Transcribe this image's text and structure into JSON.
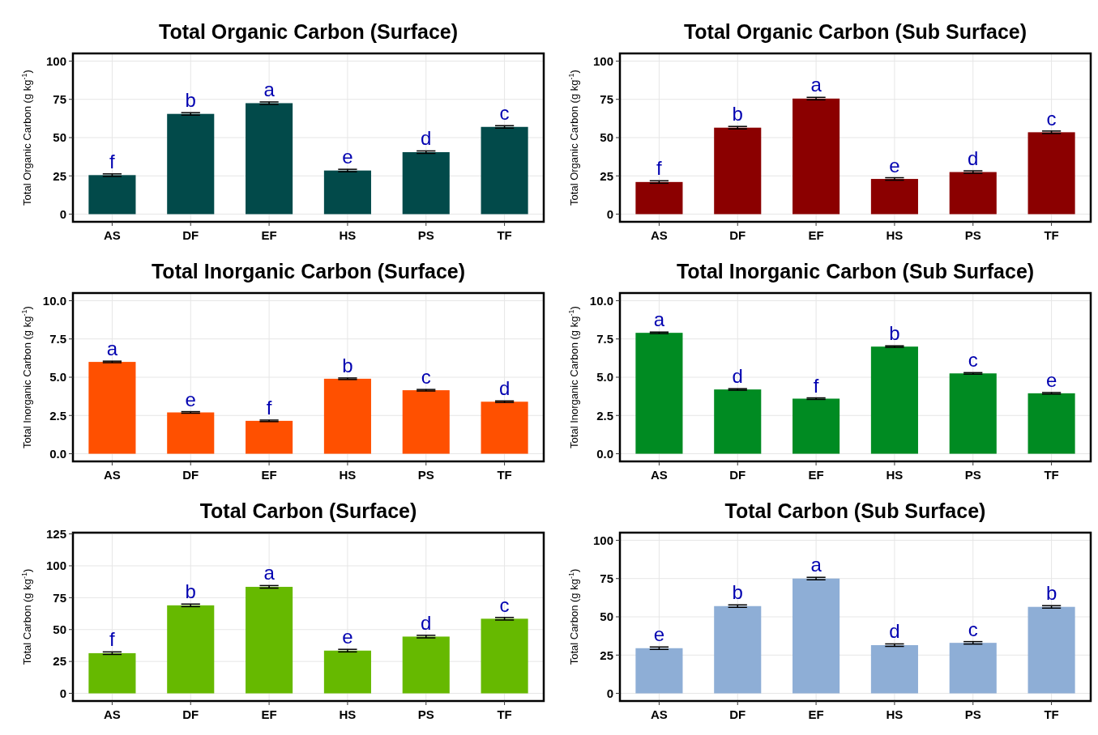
{
  "chart_data": [
    {
      "type": "bar",
      "title": "Total Organic Carbon (Surface)",
      "ylabel": "Total Organic Carbon (g kg$^{-1}$)",
      "categories": [
        "AS",
        "DF",
        "EF",
        "HS",
        "PS",
        "TF"
      ],
      "values": [
        25.5,
        65.5,
        72.5,
        28.5,
        40.5,
        57
      ],
      "errors": [
        0.8,
        0.8,
        0.8,
        0.8,
        0.8,
        0.8
      ],
      "color": "#024a4a",
      "ylim": [
        -5,
        105
      ],
      "yticks": [
        0,
        25,
        50,
        75,
        100
      ],
      "grid": true,
      "annotations": [
        {
          "text": "f",
          "x": "AS",
          "y": 26.3
        },
        {
          "text": "b",
          "x": "DF",
          "y": 66.3
        },
        {
          "text": "a",
          "x": "EF",
          "y": 73.3
        },
        {
          "text": "e",
          "x": "HS",
          "y": 29.3
        },
        {
          "text": "d",
          "x": "PS",
          "y": 41.3
        },
        {
          "text": "c",
          "x": "TF",
          "y": 57.8
        }
      ]
    },
    {
      "type": "bar",
      "title": "Total Organic Carbon (Sub Surface)",
      "ylabel": "Total Organic Carbon (g kg$^{-1}$)",
      "categories": [
        "AS",
        "DF",
        "EF",
        "HS",
        "PS",
        "TF"
      ],
      "values": [
        21,
        56.5,
        75.5,
        23,
        27.5,
        53.5
      ],
      "errors": [
        0.8,
        0.8,
        0.8,
        0.8,
        0.8,
        0.8
      ],
      "color": "#8b0000",
      "ylim": [
        -5,
        105
      ],
      "yticks": [
        0,
        25,
        50,
        75,
        100
      ],
      "grid": true,
      "annotations": [
        {
          "text": "f",
          "x": "AS",
          "y": 21.8
        },
        {
          "text": "b",
          "x": "DF",
          "y": 57.3
        },
        {
          "text": "a",
          "x": "EF",
          "y": 76.3
        },
        {
          "text": "e",
          "x": "HS",
          "y": 23.8
        },
        {
          "text": "d",
          "x": "PS",
          "y": 28.3
        },
        {
          "text": "c",
          "x": "TF",
          "y": 54.3
        }
      ]
    },
    {
      "type": "bar",
      "title": "Total Inorganic Carbon (Surface)",
      "ylabel": "Total Inorganic Carbon (g kg$^{-1}$)",
      "categories": [
        "AS",
        "DF",
        "EF",
        "HS",
        "PS",
        "TF"
      ],
      "values": [
        6.0,
        2.7,
        2.15,
        4.9,
        4.15,
        3.4
      ],
      "errors": [
        0.05,
        0.05,
        0.05,
        0.05,
        0.05,
        0.05
      ],
      "color": "#ff5000",
      "ylim": [
        -0.5,
        10.5
      ],
      "yticks": [
        {
          "value": 0,
          "label": "0.0"
        },
        {
          "value": 2.5,
          "label": "2.5"
        },
        {
          "value": 5,
          "label": "5.0"
        },
        {
          "value": 7.5,
          "label": "7.5"
        },
        {
          "value": 10,
          "label": "10.0"
        }
      ],
      "grid": true,
      "annotations": [
        {
          "text": "a",
          "x": "AS",
          "y": 6.05
        },
        {
          "text": "e",
          "x": "DF",
          "y": 2.75
        },
        {
          "text": "f",
          "x": "EF",
          "y": 2.2
        },
        {
          "text": "b",
          "x": "HS",
          "y": 4.95
        },
        {
          "text": "c",
          "x": "PS",
          "y": 4.2
        },
        {
          "text": "d",
          "x": "TF",
          "y": 3.45
        }
      ]
    },
    {
      "type": "bar",
      "title": "Total Inorganic Carbon (Sub Surface)",
      "ylabel": "Total Inorganic Carbon (g kg$^{-1}$)",
      "categories": [
        "AS",
        "DF",
        "EF",
        "HS",
        "PS",
        "TF"
      ],
      "values": [
        7.9,
        4.2,
        3.6,
        7.0,
        5.25,
        3.95
      ],
      "errors": [
        0.05,
        0.05,
        0.05,
        0.05,
        0.05,
        0.05
      ],
      "color": "#008b22",
      "ylim": [
        -0.5,
        10.5
      ],
      "yticks": [
        {
          "value": 0,
          "label": "0.0"
        },
        {
          "value": 2.5,
          "label": "2.5"
        },
        {
          "value": 5,
          "label": "5.0"
        },
        {
          "value": 7.5,
          "label": "7.5"
        },
        {
          "value": 10,
          "label": "10.0"
        }
      ],
      "grid": true,
      "annotations": [
        {
          "text": "a",
          "x": "AS",
          "y": 7.95
        },
        {
          "text": "d",
          "x": "DF",
          "y": 4.25
        },
        {
          "text": "f",
          "x": "EF",
          "y": 3.65
        },
        {
          "text": "b",
          "x": "HS",
          "y": 7.05
        },
        {
          "text": "c",
          "x": "PS",
          "y": 5.3
        },
        {
          "text": "e",
          "x": "TF",
          "y": 4.0
        }
      ]
    },
    {
      "type": "bar",
      "title": "Total Carbon (Surface)",
      "ylabel": "Total Carbon (g kg$^{-1}$)",
      "categories": [
        "AS",
        "DF",
        "EF",
        "HS",
        "PS",
        "TF"
      ],
      "values": [
        31.5,
        69,
        83.5,
        33.5,
        44.5,
        58.5
      ],
      "errors": [
        1,
        1,
        1,
        1,
        1,
        1
      ],
      "color": "#66b900",
      "ylim": [
        -6,
        126
      ],
      "yticks": [
        0,
        25,
        50,
        75,
        100,
        125
      ],
      "grid": true,
      "annotations": [
        {
          "text": "f",
          "x": "AS",
          "y": 32.5
        },
        {
          "text": "b",
          "x": "DF",
          "y": 70
        },
        {
          "text": "a",
          "x": "EF",
          "y": 84.5
        },
        {
          "text": "e",
          "x": "HS",
          "y": 34.5
        },
        {
          "text": "d",
          "x": "PS",
          "y": 45.5
        },
        {
          "text": "c",
          "x": "TF",
          "y": 59.5
        }
      ]
    },
    {
      "type": "bar",
      "title": "Total Carbon (Sub Surface)",
      "ylabel": "Total Carbon (g kg$^{-1}$)",
      "categories": [
        "AS",
        "DF",
        "EF",
        "HS",
        "PS",
        "TF"
      ],
      "values": [
        29.5,
        57,
        75,
        31.5,
        33,
        56.5
      ],
      "errors": [
        0.8,
        0.8,
        0.8,
        0.8,
        0.8,
        0.8
      ],
      "color": "#8eaed6",
      "ylim": [
        -5,
        105
      ],
      "yticks": [
        0,
        25,
        50,
        75,
        100
      ],
      "grid": true,
      "annotations": [
        {
          "text": "e",
          "x": "AS",
          "y": 30.3
        },
        {
          "text": "b",
          "x": "DF",
          "y": 57.8
        },
        {
          "text": "a",
          "x": "EF",
          "y": 75.8
        },
        {
          "text": "d",
          "x": "HS",
          "y": 32.3
        },
        {
          "text": "c",
          "x": "PS",
          "y": 33.8
        },
        {
          "text": "b",
          "x": "TF",
          "y": 57.3
        }
      ]
    }
  ]
}
